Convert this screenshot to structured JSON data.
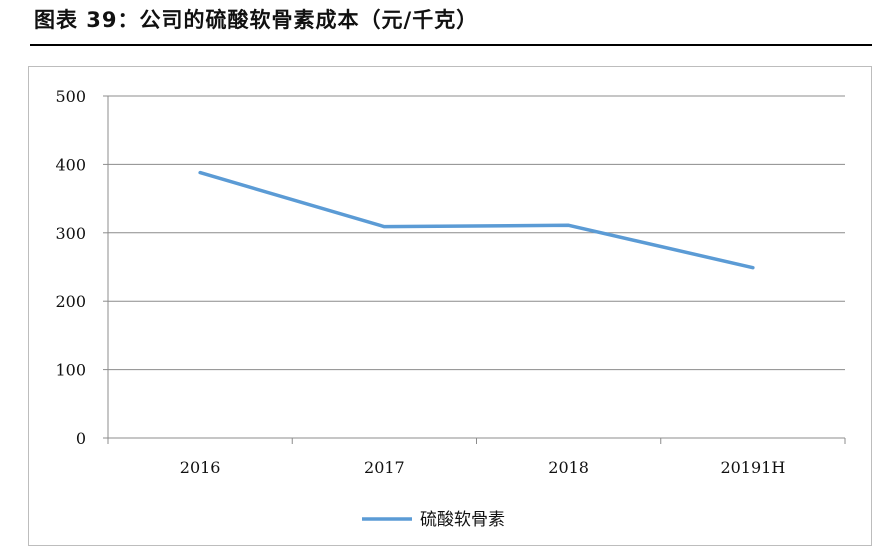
{
  "chart_data": {
    "type": "line",
    "title": "图表 39：公司的硫酸软骨素成本（元/千克）",
    "xlabel": "",
    "ylabel": "",
    "categories": [
      "2016",
      "2017",
      "2018",
      "20191H"
    ],
    "series": [
      {
        "name": "硫酸软骨素",
        "values": [
          388,
          309,
          311,
          249
        ],
        "color": "#5b9bd5"
      }
    ],
    "ylim": [
      0,
      500
    ],
    "yticks": [
      0,
      100,
      200,
      300,
      400,
      500
    ],
    "grid": true,
    "legend": "bottom-center"
  }
}
